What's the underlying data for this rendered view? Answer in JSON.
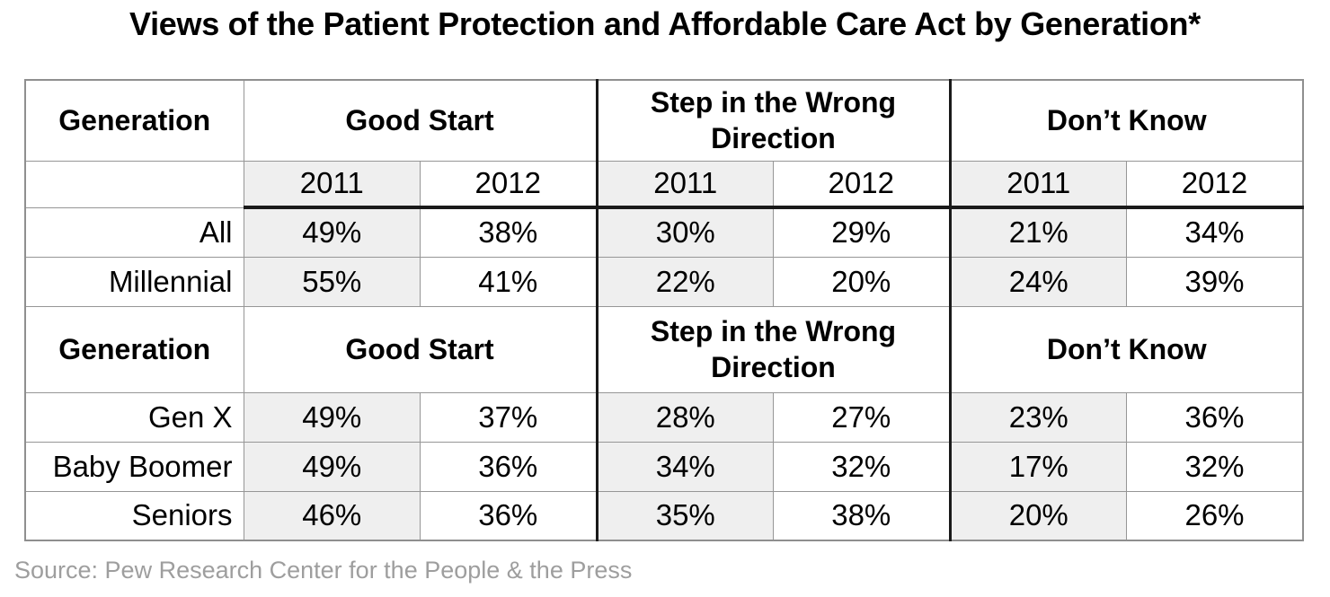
{
  "title": "Views of the Patient Protection and Affordable Care Act by Generation*",
  "source": "Source: Pew Research Center for the People & the Press",
  "colors": {
    "shade": "#efefef",
    "grid": "#969696",
    "heavy_rule": "#1a1a1a",
    "title_text": "#000000",
    "source_text": "#9e9e9e",
    "background": "#ffffff"
  },
  "table": {
    "band1": {
      "generation_label": "Generation",
      "groups": [
        {
          "label": "Good Start"
        },
        {
          "label": "Step in the Wrong Direction"
        },
        {
          "label": "Don’t Know"
        }
      ],
      "years": [
        "2011",
        "2012",
        "2011",
        "2012",
        "2011",
        "2012"
      ],
      "rows": [
        {
          "label": "All",
          "values": [
            "49%",
            "38%",
            "30%",
            "29%",
            "21%",
            "34%"
          ]
        },
        {
          "label": "Millennial",
          "values": [
            "55%",
            "41%",
            "22%",
            "20%",
            "24%",
            "39%"
          ]
        }
      ]
    },
    "band2": {
      "generation_label": "Generation",
      "groups": [
        {
          "label": "Good Start"
        },
        {
          "label": "Step in the Wrong Direction"
        },
        {
          "label": "Don’t Know"
        }
      ],
      "rows": [
        {
          "label": "Gen X",
          "values": [
            "49%",
            "37%",
            "28%",
            "27%",
            "23%",
            "36%"
          ]
        },
        {
          "label": "Baby Boomer",
          "values": [
            "49%",
            "36%",
            "34%",
            "32%",
            "17%",
            "32%"
          ]
        },
        {
          "label": "Seniors",
          "values": [
            "46%",
            "36%",
            "35%",
            "38%",
            "20%",
            "26%"
          ]
        }
      ]
    }
  },
  "chart_data": {
    "type": "table",
    "title": "Views of the Patient Protection and Affordable Care Act by Generation*",
    "units": "percent",
    "column_groups": [
      "Good Start",
      "Step in the Wrong Direction",
      "Don’t Know"
    ],
    "years": [
      "2011",
      "2012"
    ],
    "rows": [
      {
        "generation": "All",
        "good_start": {
          "2011": 49,
          "2012": 38
        },
        "wrong_direction": {
          "2011": 30,
          "2012": 29
        },
        "dont_know": {
          "2011": 21,
          "2012": 34
        }
      },
      {
        "generation": "Millennial",
        "good_start": {
          "2011": 55,
          "2012": 41
        },
        "wrong_direction": {
          "2011": 22,
          "2012": 20
        },
        "dont_know": {
          "2011": 24,
          "2012": 39
        }
      },
      {
        "generation": "Gen X",
        "good_start": {
          "2011": 49,
          "2012": 37
        },
        "wrong_direction": {
          "2011": 28,
          "2012": 27
        },
        "dont_know": {
          "2011": 23,
          "2012": 36
        }
      },
      {
        "generation": "Baby Boomer",
        "good_start": {
          "2011": 49,
          "2012": 36
        },
        "wrong_direction": {
          "2011": 34,
          "2012": 32
        },
        "dont_know": {
          "2011": 17,
          "2012": 32
        }
      },
      {
        "generation": "Seniors",
        "good_start": {
          "2011": 46,
          "2012": 36
        },
        "wrong_direction": {
          "2011": 35,
          "2012": 38
        },
        "dont_know": {
          "2011": 20,
          "2012": 26
        }
      }
    ],
    "source": "Source: Pew Research Center for the People & the Press"
  }
}
